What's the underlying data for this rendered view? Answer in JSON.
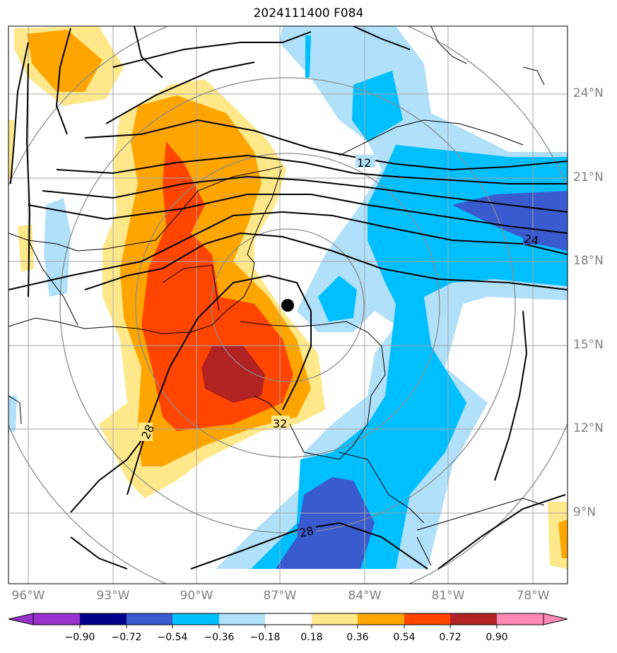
{
  "title": "2024111400 F084",
  "lat_labels": [
    {
      "text": "24°N",
      "lat": 24
    },
    {
      "text": "21°N",
      "lat": 21
    },
    {
      "text": "18°N",
      "lat": 18
    },
    {
      "text": "15°N",
      "lat": 15
    },
    {
      "text": "12°N",
      "lat": 12
    },
    {
      "text": "9°N",
      "lat": 9
    }
  ],
  "lon_labels": [
    {
      "text": "96°W",
      "lon": -96
    },
    {
      "text": "93°W",
      "lon": -93
    },
    {
      "text": "90°W",
      "lon": -90
    },
    {
      "text": "87°W",
      "lon": -87
    },
    {
      "text": "84°W",
      "lon": -84
    },
    {
      "text": "81°W",
      "lon": -81
    },
    {
      "text": "78°W",
      "lon": -78
    }
  ],
  "contour_labels": [
    "12",
    "24",
    "28",
    "32",
    "28"
  ],
  "storm_center": {
    "lat": 16.6,
    "lon": -86.7
  },
  "colorbar": {
    "levels": [
      "−0.90",
      "−0.72",
      "−0.54",
      "−0.36",
      "−0.18",
      "0.18",
      "0.36",
      "0.54",
      "0.72",
      "0.90"
    ],
    "colors": [
      "#9932cc",
      "#00008b",
      "#3a5bcf",
      "#00bfff",
      "#b0e0fa",
      "#ffffff",
      "#ffe88a",
      "#ffa500",
      "#ff4500",
      "#b22222",
      "#ff88b5"
    ]
  },
  "shading_colors": {
    "neg_strong": "#3a5bcf",
    "neg_mid": "#00bfff",
    "neg_weak": "#b0e0fa",
    "pos_weak": "#ffe88a",
    "pos_mid": "#ffa500",
    "pos_strong": "#ff4500",
    "pos_max": "#b22222"
  }
}
